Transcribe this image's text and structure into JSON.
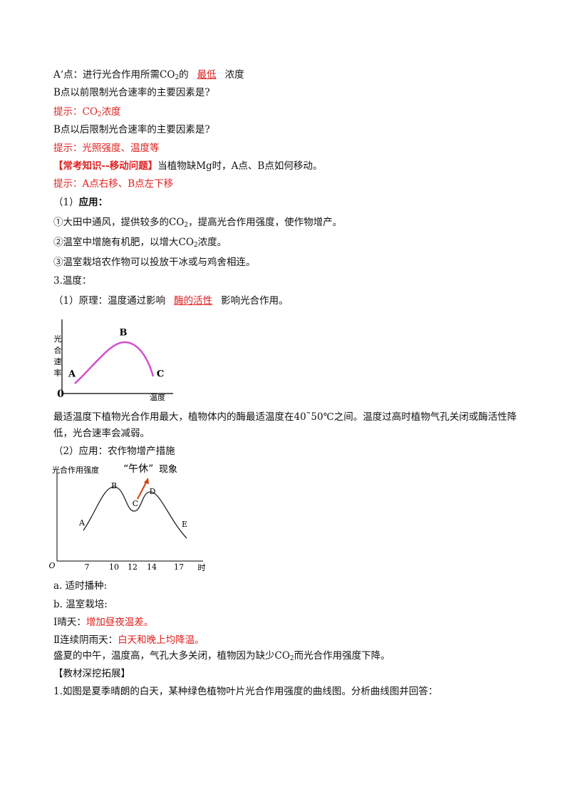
{
  "paragraphs": [
    [
      "A‘点：进行光合作用所需CO",
      "2",
      "的",
      "最低",
      "浓度"
    ],
    [
      "B点以前限制光合速率的主要因素是?"
    ],
    [
      "提示：CO",
      "2",
      "浓度"
    ],
    [
      "B点以后限制光合速率的主要因素是?"
    ],
    [
      "提示：光照强度、温度等"
    ],
    [
      "【常考知识--移动问题】",
      "当植物缺Mg时，A点、B点如何移动。"
    ],
    [
      "提示：A点右移、B点左下移"
    ],
    [
      "（1）",
      "应用："
    ],
    [
      "①大田中通风，提供较多的CO",
      "2",
      "，提高光合作用强度，使作物增产。"
    ],
    [
      "②温室中增施有机肥，以增大CO",
      "2",
      "浓度。"
    ],
    [
      "③温室栽培农作物可以投放干冰或与鸡舍相连。"
    ],
    [
      "3.温度："
    ],
    [
      "（1）原理：温度通过影响",
      "酶的活性",
      "影响光合作用。"
    ],
    [
      "最适温度下植物光合作用最大，植物体内的酶最适温度在40˜50℃之间。温度过高时植物气孔关闭或酶活性降低，光合速率会减弱。"
    ],
    [
      "（2）应用：农作物增产措施"
    ],
    [
      "a. 适时播种:"
    ],
    [
      "b. 温室栽培:"
    ],
    [
      "Ⅰ晴天：",
      "增加昼夜温差。"
    ],
    [
      "Ⅱ连续阴雨天：",
      "白天和晚上均降温。"
    ],
    [
      "盛夏的中午，温度高，气孔大多关闭，植物因为缺少CO",
      "2",
      "而光合作用强度下降。"
    ],
    [
      "【教材深挖拓展】"
    ],
    [
      "1.如图是夏季晴朗的白天，某种绿色植物叶片光合作用强度的曲线图。分析曲线图并回答："
    ]
  ],
  "figure1": {
    "y_label": [
      "光",
      "合",
      "速",
      "率"
    ],
    "points": [
      "A",
      "B",
      "C"
    ],
    "origin": "0",
    "x_label": "温度"
  },
  "figure2": {
    "y_label": "光合作用强度",
    "title": [
      "“午休”",
      "现象"
    ],
    "points": [
      "A",
      "B",
      "C",
      "D",
      "E"
    ],
    "origin": "O",
    "x_ticks": [
      "7",
      "10",
      "12",
      "14",
      "17"
    ],
    "x_label": "时"
  }
}
